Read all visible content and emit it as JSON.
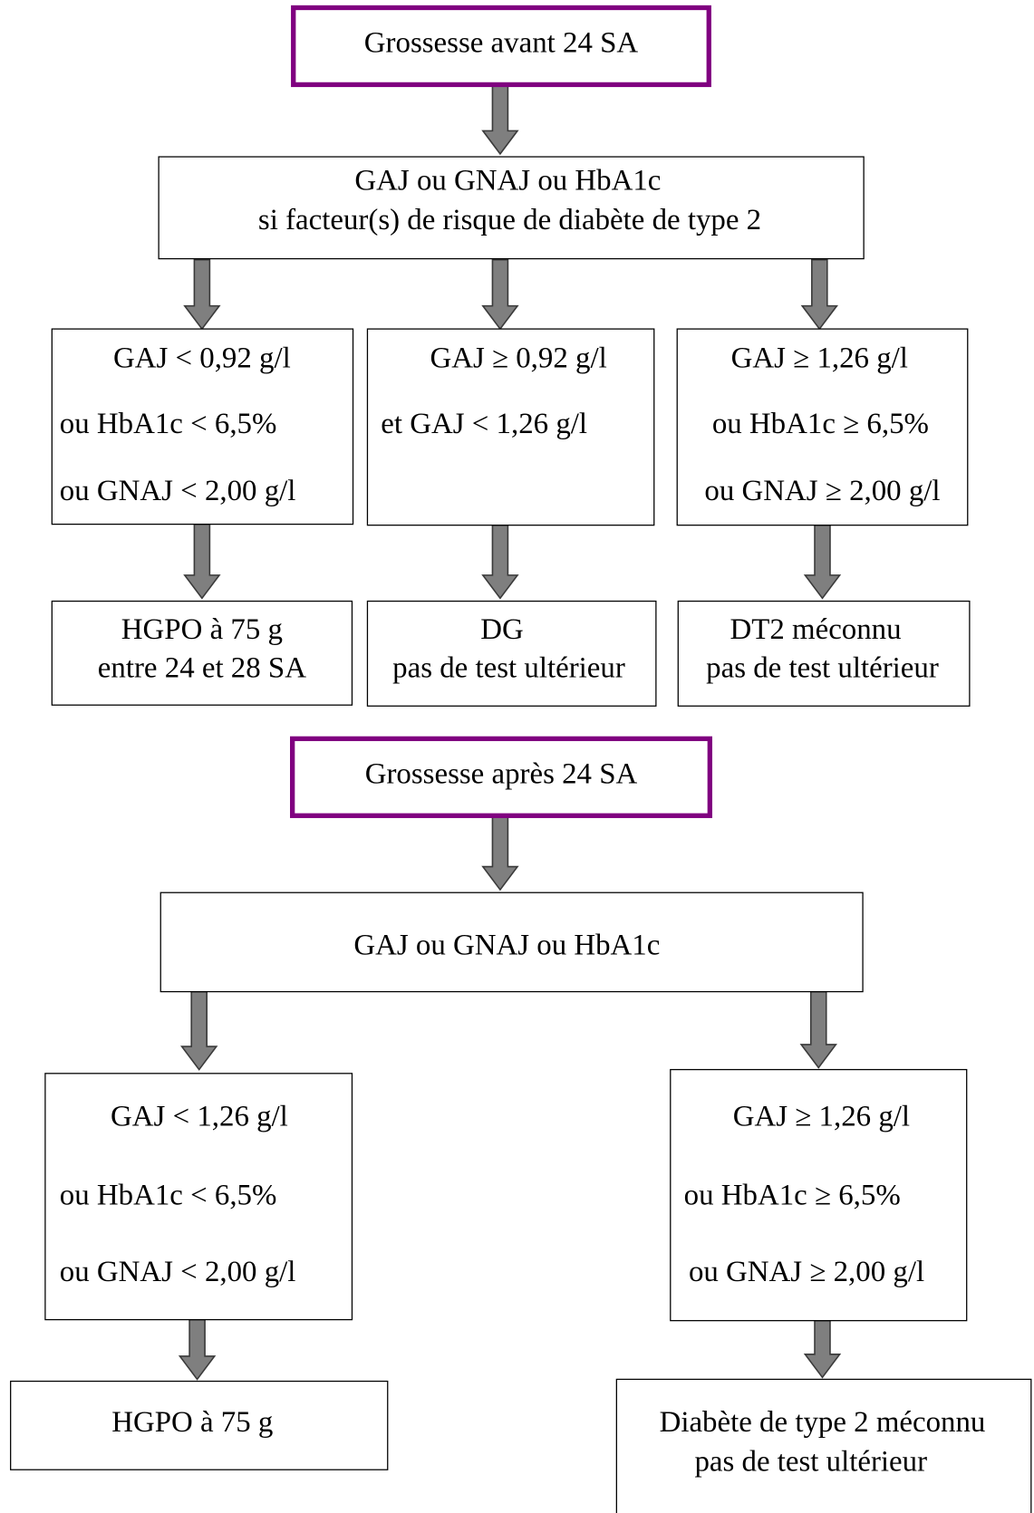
{
  "nodes": [
    {
      "lines": [
        "Grossesse avant 24 SA"
      ]
    },
    {
      "lines": [
        "GAJ ou GNAJ ou HbA1c",
        "si facteur(s) de risque de diabète de type 2"
      ]
    },
    {
      "lines": [
        "GAJ < 0,92 g/l",
        "ou  HbA1c < 6,5%",
        "ou GNAJ < 2,00 g/l"
      ]
    },
    {
      "lines": [
        "GAJ ≥ 0,92 g/l",
        "et   GAJ < 1,26 g/l"
      ]
    },
    {
      "lines": [
        "GAJ ≥ 1,26 g/l",
        "ou HbA1c ≥ 6,5%",
        "ou GNAJ ≥ 2,00 g/l"
      ]
    },
    {
      "lines": [
        "HGPO à 75 g",
        "entre 24 et 28 SA"
      ]
    },
    {
      "lines": [
        "DG",
        "pas de test ultérieur"
      ]
    },
    {
      "lines": [
        "DT2 méconnu",
        "pas de test ultérieur"
      ]
    },
    {
      "lines": [
        "Grossesse après 24 SA"
      ]
    },
    {
      "lines": [
        "GAJ ou GNAJ ou HbA1c"
      ]
    },
    {
      "lines": [
        "GAJ < 1,26 g/l",
        "ou  HbA1c < 6,5%",
        "ou  GNAJ < 2,00 g/l"
      ]
    },
    {
      "lines": [
        "GAJ ≥ 1,26 g/l",
        "ou HbA1c ≥ 6,5%",
        "ou GNAJ ≥ 2,00 g/l"
      ]
    },
    {
      "lines": [
        "HGPO à 75 g"
      ]
    },
    {
      "lines": [
        "Diabète de type 2 méconnu",
        "pas de test ultérieur"
      ]
    }
  ]
}
